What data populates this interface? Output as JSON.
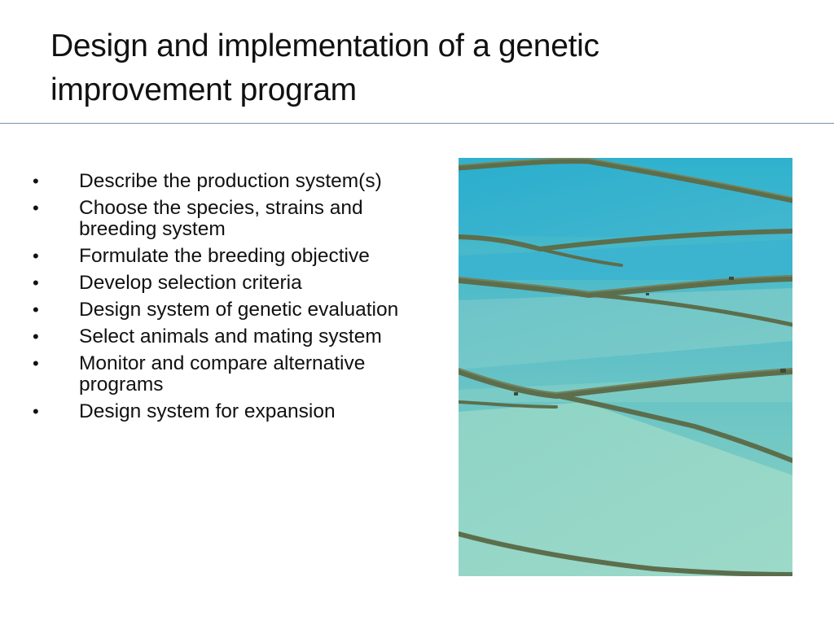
{
  "slide": {
    "title": "Design and implementation of a genetic improvement program",
    "bullets": [
      "Describe the production system(s)",
      "Choose the species, strains and breeding system",
      "Formulate the breeding objective",
      "Develop selection criteria",
      "Design system of genetic evaluation",
      "Select animals and mating system",
      "Monitor and compare alternative programs",
      "Design system for expansion"
    ],
    "bullet_glyph": "•",
    "image": {
      "icon": "aquaculture-ponds-aerial-photo",
      "colors": {
        "water_top": "#2fb2cf",
        "water_mid": "#5fc0c6",
        "water_bottom": "#8fd3c2",
        "dike": "#5f6f4d"
      }
    }
  }
}
